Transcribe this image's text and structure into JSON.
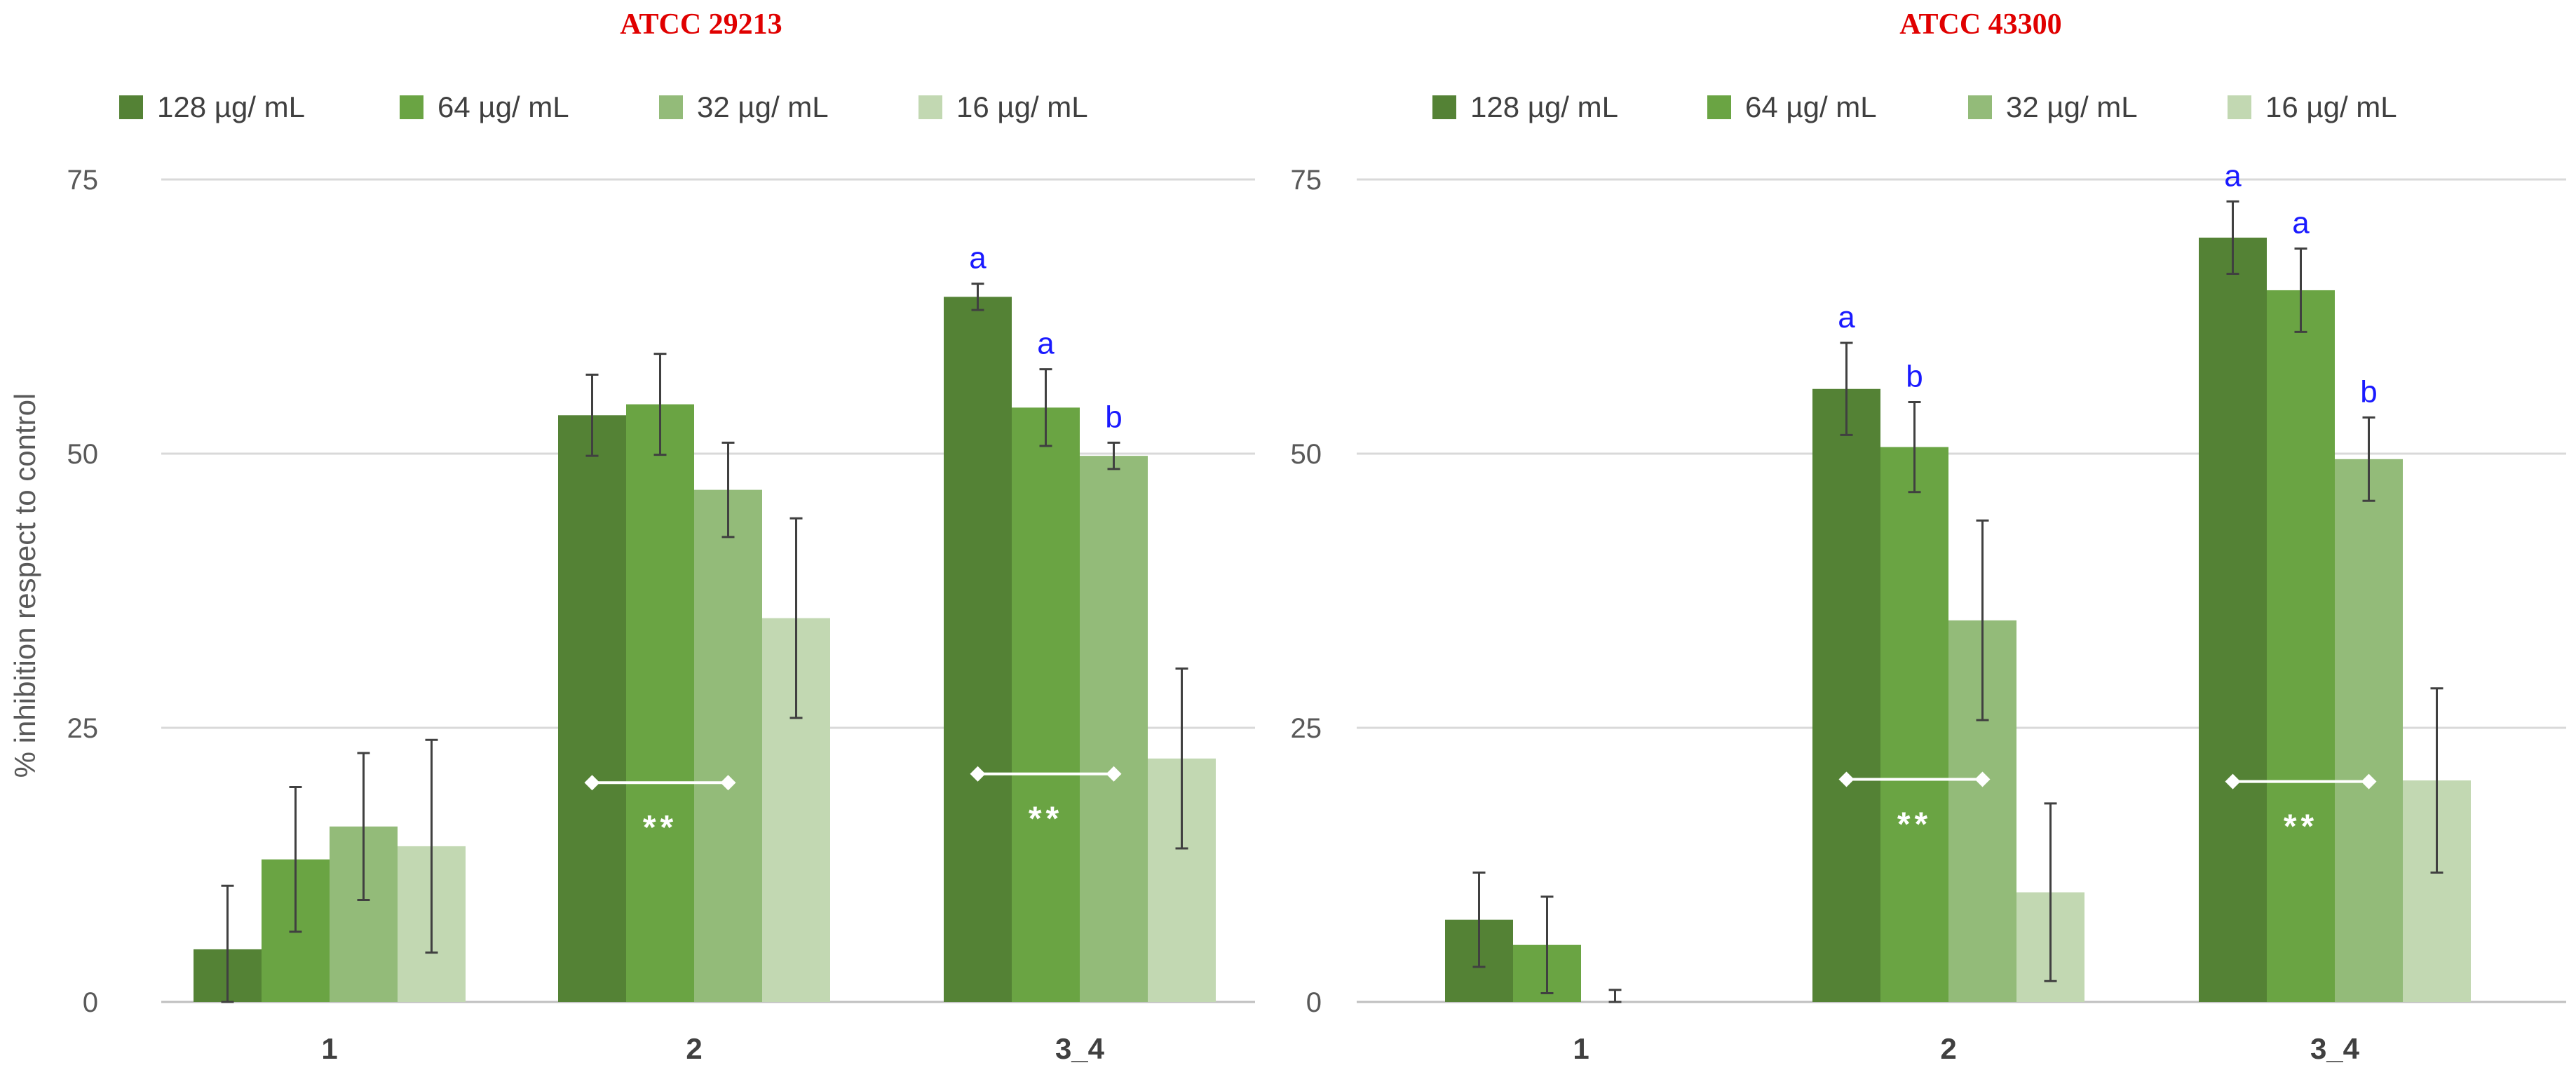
{
  "y_axis_label": "% inhibition respect to control",
  "colors": {
    "s128": "#548235",
    "s64": "#6aa443",
    "s32": "#93bb79",
    "s16": "#c2d8b2",
    "title": "#e00000",
    "letters": "#1a1aff",
    "grid": "#d9d9d9",
    "error_bar": "#404040",
    "star_annotation": "#ffffff"
  },
  "chart_data": [
    {
      "type": "bar",
      "title": "ATCC 29213",
      "categories": [
        "1",
        "2",
        "3_4"
      ],
      "ylim": [
        0,
        75
      ],
      "yticks": [
        0,
        25,
        50,
        75
      ],
      "grid": true,
      "legend_position": "top",
      "series": [
        {
          "name": "128 µg/ mL",
          "values": [
            4.8,
            53.5,
            64.3
          ],
          "errors": [
            5.8,
            3.7,
            1.2
          ]
        },
        {
          "name": "64 µg/ mL",
          "values": [
            13.0,
            54.5,
            54.2
          ],
          "errors": [
            6.6,
            4.6,
            3.5
          ]
        },
        {
          "name": "32 µg/ mL",
          "values": [
            16.0,
            46.7,
            49.8
          ],
          "errors": [
            6.7,
            4.3,
            1.2
          ]
        },
        {
          "name": "16 µg/ mL",
          "values": [
            14.2,
            35.0,
            22.2
          ],
          "errors": [
            9.7,
            9.1,
            8.2
          ]
        }
      ],
      "letters": [
        {
          "category": "3_4",
          "series": 0,
          "text": "a"
        },
        {
          "category": "3_4",
          "series": 1,
          "text": "a"
        },
        {
          "category": "3_4",
          "series": 2,
          "text": "b"
        }
      ],
      "annotations": [
        {
          "category": "2",
          "text": "**",
          "value": 20.0
        },
        {
          "category": "3_4",
          "text": "**",
          "value": 20.8
        }
      ]
    },
    {
      "type": "bar",
      "title": "ATCC 43300",
      "categories": [
        "1",
        "2",
        "3_4"
      ],
      "ylim": [
        0,
        75
      ],
      "yticks": [
        0,
        25,
        50,
        75
      ],
      "grid": true,
      "legend_position": "top",
      "series": [
        {
          "name": "128 µg/ mL",
          "values": [
            7.5,
            55.9,
            69.7
          ],
          "errors": [
            4.3,
            4.2,
            3.3
          ]
        },
        {
          "name": "64 µg/ mL",
          "values": [
            5.2,
            50.6,
            64.9
          ],
          "errors": [
            4.4,
            4.1,
            3.8
          ]
        },
        {
          "name": "32 µg/ mL",
          "values": [
            0.0,
            34.8,
            49.5
          ],
          "errors": [
            1.1,
            9.1,
            3.8
          ]
        },
        {
          "name": "16 µg/ mL",
          "values": [
            0.0,
            10.0,
            20.2
          ],
          "errors": [
            0.0,
            8.1,
            8.4
          ]
        }
      ],
      "letters": [
        {
          "category": "2",
          "series": 0,
          "text": "a"
        },
        {
          "category": "2",
          "series": 1,
          "text": "b"
        },
        {
          "category": "3_4",
          "series": 0,
          "text": "a"
        },
        {
          "category": "3_4",
          "series": 1,
          "text": "a"
        },
        {
          "category": "3_4",
          "series": 2,
          "text": "b"
        }
      ],
      "annotations": [
        {
          "category": "2",
          "text": "**",
          "value": 20.3
        },
        {
          "category": "3_4",
          "text": "**",
          "value": 20.1
        }
      ]
    }
  ]
}
